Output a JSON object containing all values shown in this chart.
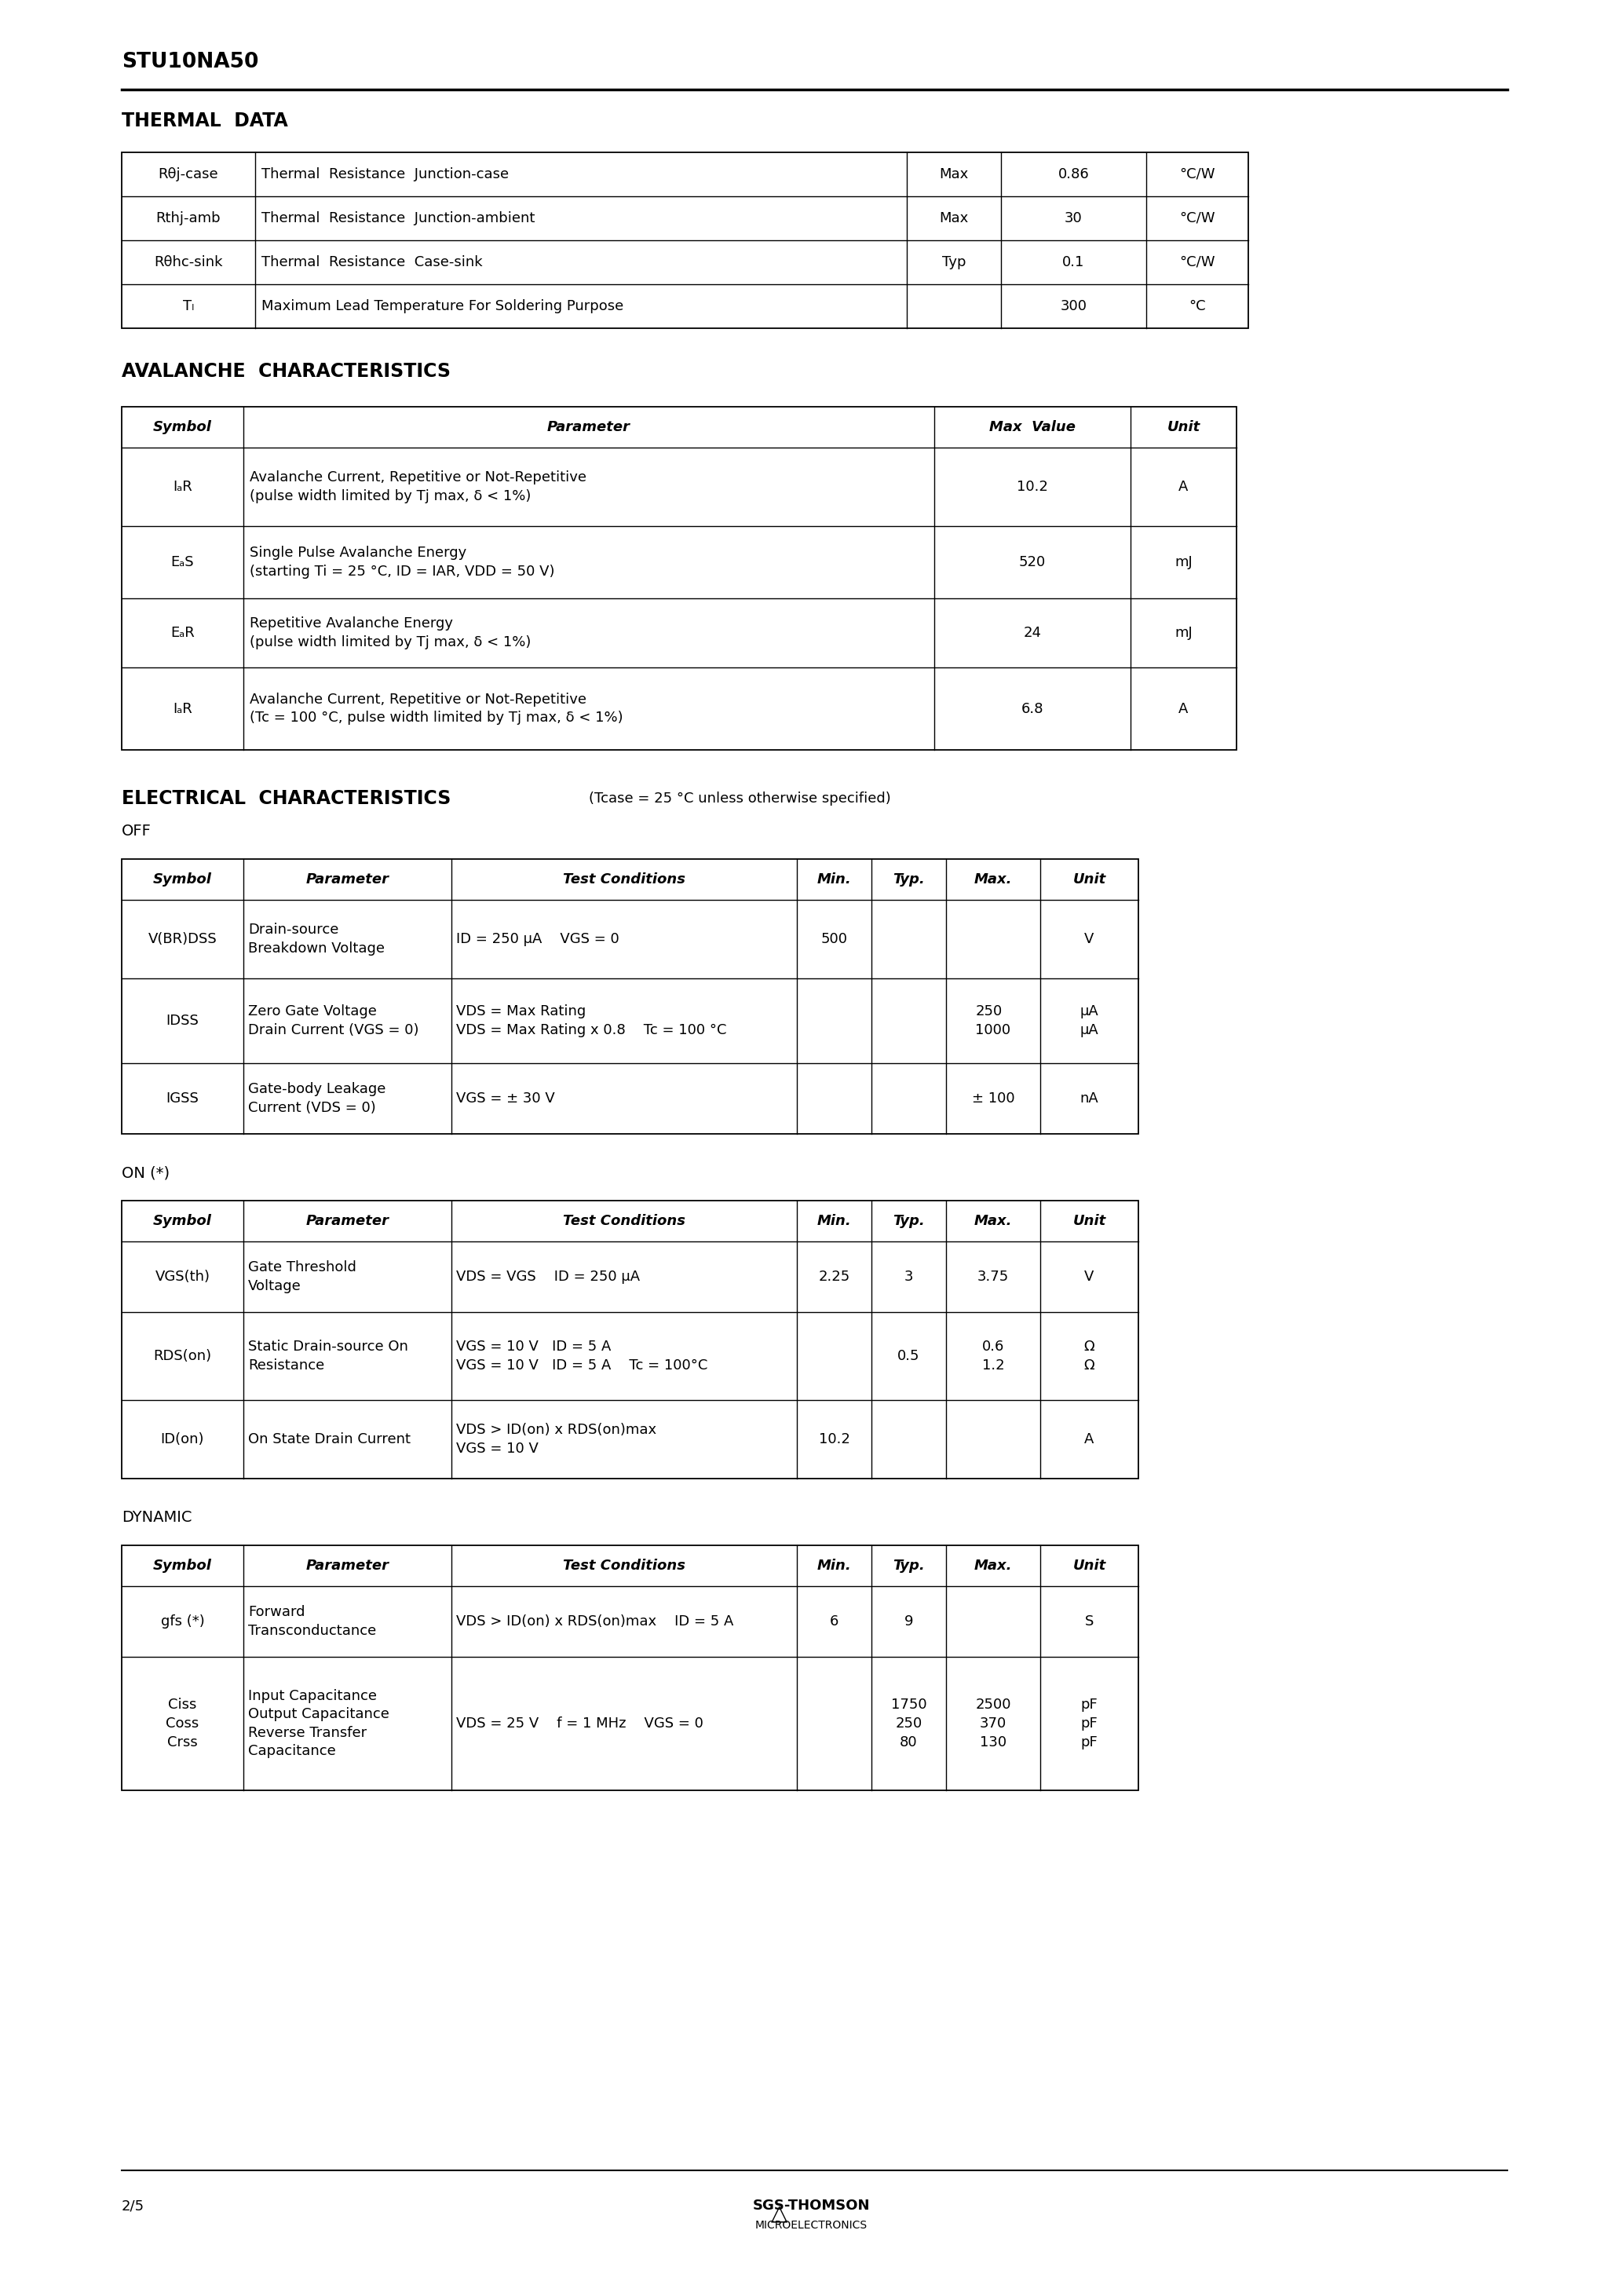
{
  "page_title": "STU10NA50",
  "page_number": "2/5",
  "bg": "#ffffff",
  "fg": "#000000",
  "thermal_title": "THERMAL  DATA",
  "thermal_rows": [
    [
      "Rθj-case",
      "Thermal  Resistance  Junction-case",
      "Max",
      "0.86",
      "°C/W"
    ],
    [
      "Rthj-amb",
      "Thermal  Resistance  Junction-ambient",
      "Max",
      "30",
      "°C/W"
    ],
    [
      "Rθhc-sink",
      "Thermal  Resistance  Case-sink",
      "Typ",
      "0.1",
      "°C/W"
    ],
    [
      "Tₗ",
      "Maximum Lead Temperature For Soldering Purpose",
      "",
      "300",
      "°C"
    ]
  ],
  "av_title": "AVALANCHE  CHARACTERISTICS",
  "av_header": [
    "Symbol",
    "Parameter",
    "Max  Value",
    "Unit"
  ],
  "av_rows": [
    [
      "IₐR",
      "Avalanche Current, Repetitive or Not-Repetitive\n(pulse width limited by Tj max, δ < 1%)",
      "10.2",
      "A"
    ],
    [
      "EₐS",
      "Single Pulse Avalanche Energy\n(starting Ti = 25 °C, ID = IAR, VDD = 50 V)",
      "520",
      "mJ"
    ],
    [
      "EₐR",
      "Repetitive Avalanche Energy\n(pulse width limited by Tj max, δ < 1%)",
      "24",
      "mJ"
    ],
    [
      "IₐR",
      "Avalanche Current, Repetitive or Not-Repetitive\n(Tc = 100 °C, pulse width limited by Tj max, δ < 1%)",
      "6.8",
      "A"
    ]
  ],
  "ec_title": "ELECTRICAL  CHARACTERISTICS",
  "ec_subtitle": "(Tcase = 25 °C unless otherwise specified)",
  "off_header": [
    "Symbol",
    "Parameter",
    "Test Conditions",
    "Min.",
    "Typ.",
    "Max.",
    "Unit"
  ],
  "off_rows": [
    [
      "V(BR)DSS",
      "Drain-source\nBreakdown Voltage",
      "ID = 250 μA    VGS = 0",
      "500",
      "",
      "",
      "V"
    ],
    [
      "IDSS",
      "Zero Gate Voltage\nDrain Current (VGS = 0)",
      "VDS = Max Rating\nVDS = Max Rating x 0.8    Tc = 100 °C",
      "",
      "",
      "250\n1000",
      "μA\nμA"
    ],
    [
      "IGSS",
      "Gate-body Leakage\nCurrent (VDS = 0)",
      "VGS = ± 30 V",
      "",
      "",
      "± 100",
      "nA"
    ]
  ],
  "on_header": [
    "Symbol",
    "Parameter",
    "Test Conditions",
    "Min.",
    "Typ.",
    "Max.",
    "Unit"
  ],
  "on_rows": [
    [
      "VGS(th)",
      "Gate Threshold\nVoltage",
      "VDS = VGS    ID = 250 μA",
      "2.25",
      "3",
      "3.75",
      "V"
    ],
    [
      "RDS(on)",
      "Static Drain-source On\nResistance",
      "VGS = 10 V   ID = 5 A\nVGS = 10 V   ID = 5 A    Tc = 100°C",
      "",
      "0.5",
      "0.6\n1.2",
      "Ω\nΩ"
    ],
    [
      "ID(on)",
      "On State Drain Current",
      "VDS > ID(on) x RDS(on)max\nVGS = 10 V",
      "10.2",
      "",
      "",
      "A"
    ]
  ],
  "dyn_header": [
    "Symbol",
    "Parameter",
    "Test Conditions",
    "Min.",
    "Typ.",
    "Max.",
    "Unit"
  ],
  "dyn_rows": [
    [
      "gfs (*)",
      "Forward\nTransconductance",
      "VDS > ID(on) x RDS(on)max    ID = 5 A",
      "6",
      "9",
      "",
      "S"
    ],
    [
      "Ciss\nCoss\nCrss",
      "Input Capacitance\nOutput Capacitance\nReverse Transfer\nCapacitance",
      "VDS = 25 V    f = 1 MHz    VGS = 0",
      "",
      "1750\n250\n80",
      "2500\n370\n130",
      "pF\npF\npF"
    ]
  ]
}
